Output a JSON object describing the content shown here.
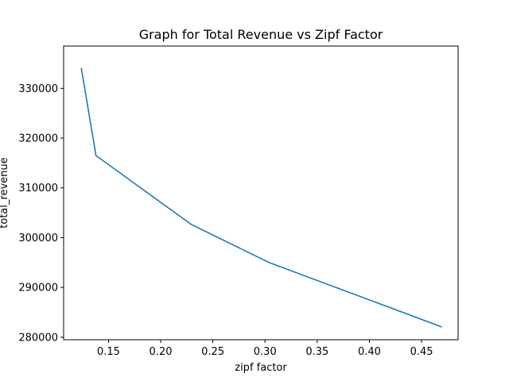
{
  "chart_data": {
    "type": "line",
    "title": "Graph for Total Revenue vs Zipf Factor",
    "xlabel": "zipf factor",
    "ylabel": "total_revenue",
    "xlim": [
      0.107,
      0.485
    ],
    "ylim": [
      279500,
      338500
    ],
    "xticks": [
      0.15,
      0.2,
      0.25,
      0.3,
      0.35,
      0.4,
      0.45
    ],
    "xtick_labels": [
      "0.15",
      "0.20",
      "0.25",
      "0.30",
      "0.35",
      "0.40",
      "0.45"
    ],
    "yticks": [
      280000,
      290000,
      300000,
      310000,
      320000,
      330000
    ],
    "ytick_labels": [
      "280000",
      "290000",
      "300000",
      "310000",
      "320000",
      "330000"
    ],
    "grid": false,
    "series": [
      {
        "color": "#1f77b4",
        "x": [
          0.124,
          0.138,
          0.229,
          0.304,
          0.469
        ],
        "y": [
          334000,
          316500,
          302700,
          295000,
          282100
        ]
      }
    ]
  }
}
